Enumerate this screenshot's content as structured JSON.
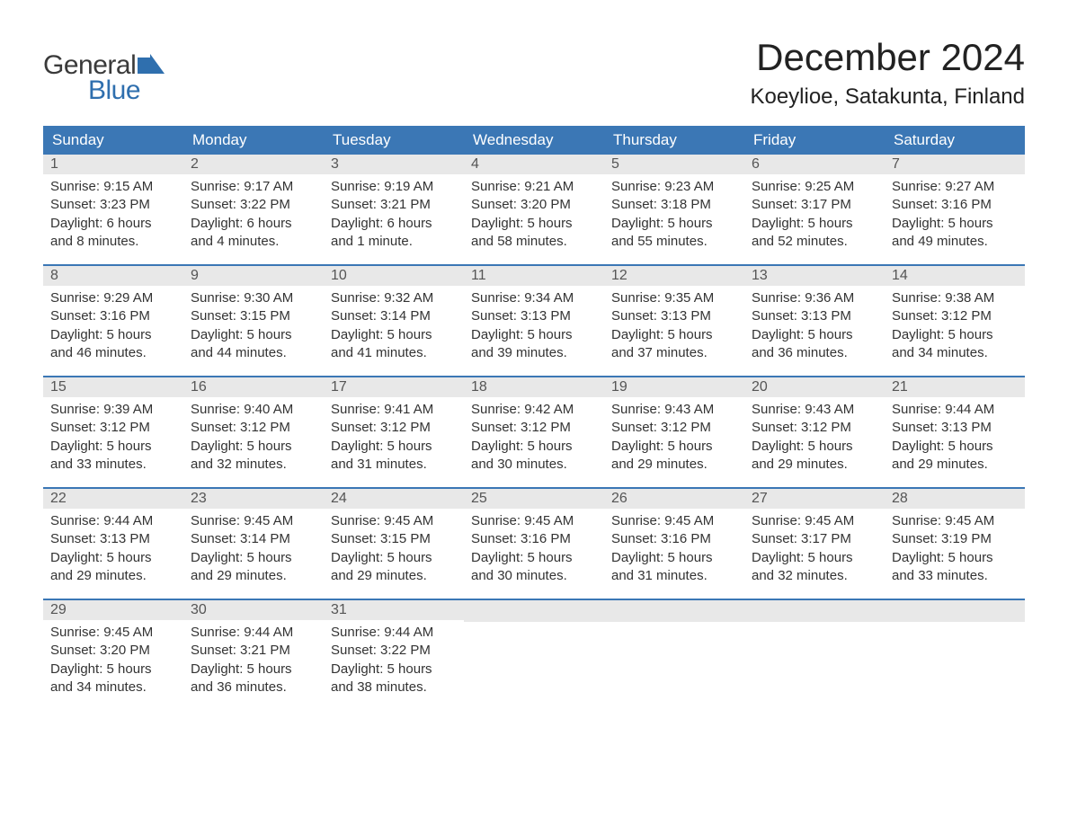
{
  "logo": {
    "word1": "General",
    "word2": "Blue",
    "text_color_1": "#3a3a3a",
    "text_color_2": "#2f6fae",
    "icon_color": "#2f6fae"
  },
  "title": "December 2024",
  "location": "Koeylioe, Satakunta, Finland",
  "colors": {
    "header_bg": "#3b77b5",
    "header_text": "#ffffff",
    "daynum_bg": "#e8e8e8",
    "daynum_text": "#555555",
    "body_text": "#333333",
    "week_border": "#3b77b5",
    "page_bg": "#ffffff"
  },
  "typography": {
    "title_fontsize": 42,
    "location_fontsize": 24,
    "dayheader_fontsize": 17,
    "daynum_fontsize": 16,
    "content_fontsize": 15,
    "logo_fontsize": 30
  },
  "day_labels": [
    "Sunday",
    "Monday",
    "Tuesday",
    "Wednesday",
    "Thursday",
    "Friday",
    "Saturday"
  ],
  "weeks": [
    [
      {
        "num": "1",
        "sunrise": "Sunrise: 9:15 AM",
        "sunset": "Sunset: 3:23 PM",
        "daylight1": "Daylight: 6 hours",
        "daylight2": "and 8 minutes."
      },
      {
        "num": "2",
        "sunrise": "Sunrise: 9:17 AM",
        "sunset": "Sunset: 3:22 PM",
        "daylight1": "Daylight: 6 hours",
        "daylight2": "and 4 minutes."
      },
      {
        "num": "3",
        "sunrise": "Sunrise: 9:19 AM",
        "sunset": "Sunset: 3:21 PM",
        "daylight1": "Daylight: 6 hours",
        "daylight2": "and 1 minute."
      },
      {
        "num": "4",
        "sunrise": "Sunrise: 9:21 AM",
        "sunset": "Sunset: 3:20 PM",
        "daylight1": "Daylight: 5 hours",
        "daylight2": "and 58 minutes."
      },
      {
        "num": "5",
        "sunrise": "Sunrise: 9:23 AM",
        "sunset": "Sunset: 3:18 PM",
        "daylight1": "Daylight: 5 hours",
        "daylight2": "and 55 minutes."
      },
      {
        "num": "6",
        "sunrise": "Sunrise: 9:25 AM",
        "sunset": "Sunset: 3:17 PM",
        "daylight1": "Daylight: 5 hours",
        "daylight2": "and 52 minutes."
      },
      {
        "num": "7",
        "sunrise": "Sunrise: 9:27 AM",
        "sunset": "Sunset: 3:16 PM",
        "daylight1": "Daylight: 5 hours",
        "daylight2": "and 49 minutes."
      }
    ],
    [
      {
        "num": "8",
        "sunrise": "Sunrise: 9:29 AM",
        "sunset": "Sunset: 3:16 PM",
        "daylight1": "Daylight: 5 hours",
        "daylight2": "and 46 minutes."
      },
      {
        "num": "9",
        "sunrise": "Sunrise: 9:30 AM",
        "sunset": "Sunset: 3:15 PM",
        "daylight1": "Daylight: 5 hours",
        "daylight2": "and 44 minutes."
      },
      {
        "num": "10",
        "sunrise": "Sunrise: 9:32 AM",
        "sunset": "Sunset: 3:14 PM",
        "daylight1": "Daylight: 5 hours",
        "daylight2": "and 41 minutes."
      },
      {
        "num": "11",
        "sunrise": "Sunrise: 9:34 AM",
        "sunset": "Sunset: 3:13 PM",
        "daylight1": "Daylight: 5 hours",
        "daylight2": "and 39 minutes."
      },
      {
        "num": "12",
        "sunrise": "Sunrise: 9:35 AM",
        "sunset": "Sunset: 3:13 PM",
        "daylight1": "Daylight: 5 hours",
        "daylight2": "and 37 minutes."
      },
      {
        "num": "13",
        "sunrise": "Sunrise: 9:36 AM",
        "sunset": "Sunset: 3:13 PM",
        "daylight1": "Daylight: 5 hours",
        "daylight2": "and 36 minutes."
      },
      {
        "num": "14",
        "sunrise": "Sunrise: 9:38 AM",
        "sunset": "Sunset: 3:12 PM",
        "daylight1": "Daylight: 5 hours",
        "daylight2": "and 34 minutes."
      }
    ],
    [
      {
        "num": "15",
        "sunrise": "Sunrise: 9:39 AM",
        "sunset": "Sunset: 3:12 PM",
        "daylight1": "Daylight: 5 hours",
        "daylight2": "and 33 minutes."
      },
      {
        "num": "16",
        "sunrise": "Sunrise: 9:40 AM",
        "sunset": "Sunset: 3:12 PM",
        "daylight1": "Daylight: 5 hours",
        "daylight2": "and 32 minutes."
      },
      {
        "num": "17",
        "sunrise": "Sunrise: 9:41 AM",
        "sunset": "Sunset: 3:12 PM",
        "daylight1": "Daylight: 5 hours",
        "daylight2": "and 31 minutes."
      },
      {
        "num": "18",
        "sunrise": "Sunrise: 9:42 AM",
        "sunset": "Sunset: 3:12 PM",
        "daylight1": "Daylight: 5 hours",
        "daylight2": "and 30 minutes."
      },
      {
        "num": "19",
        "sunrise": "Sunrise: 9:43 AM",
        "sunset": "Sunset: 3:12 PM",
        "daylight1": "Daylight: 5 hours",
        "daylight2": "and 29 minutes."
      },
      {
        "num": "20",
        "sunrise": "Sunrise: 9:43 AM",
        "sunset": "Sunset: 3:12 PM",
        "daylight1": "Daylight: 5 hours",
        "daylight2": "and 29 minutes."
      },
      {
        "num": "21",
        "sunrise": "Sunrise: 9:44 AM",
        "sunset": "Sunset: 3:13 PM",
        "daylight1": "Daylight: 5 hours",
        "daylight2": "and 29 minutes."
      }
    ],
    [
      {
        "num": "22",
        "sunrise": "Sunrise: 9:44 AM",
        "sunset": "Sunset: 3:13 PM",
        "daylight1": "Daylight: 5 hours",
        "daylight2": "and 29 minutes."
      },
      {
        "num": "23",
        "sunrise": "Sunrise: 9:45 AM",
        "sunset": "Sunset: 3:14 PM",
        "daylight1": "Daylight: 5 hours",
        "daylight2": "and 29 minutes."
      },
      {
        "num": "24",
        "sunrise": "Sunrise: 9:45 AM",
        "sunset": "Sunset: 3:15 PM",
        "daylight1": "Daylight: 5 hours",
        "daylight2": "and 29 minutes."
      },
      {
        "num": "25",
        "sunrise": "Sunrise: 9:45 AM",
        "sunset": "Sunset: 3:16 PM",
        "daylight1": "Daylight: 5 hours",
        "daylight2": "and 30 minutes."
      },
      {
        "num": "26",
        "sunrise": "Sunrise: 9:45 AM",
        "sunset": "Sunset: 3:16 PM",
        "daylight1": "Daylight: 5 hours",
        "daylight2": "and 31 minutes."
      },
      {
        "num": "27",
        "sunrise": "Sunrise: 9:45 AM",
        "sunset": "Sunset: 3:17 PM",
        "daylight1": "Daylight: 5 hours",
        "daylight2": "and 32 minutes."
      },
      {
        "num": "28",
        "sunrise": "Sunrise: 9:45 AM",
        "sunset": "Sunset: 3:19 PM",
        "daylight1": "Daylight: 5 hours",
        "daylight2": "and 33 minutes."
      }
    ],
    [
      {
        "num": "29",
        "sunrise": "Sunrise: 9:45 AM",
        "sunset": "Sunset: 3:20 PM",
        "daylight1": "Daylight: 5 hours",
        "daylight2": "and 34 minutes."
      },
      {
        "num": "30",
        "sunrise": "Sunrise: 9:44 AM",
        "sunset": "Sunset: 3:21 PM",
        "daylight1": "Daylight: 5 hours",
        "daylight2": "and 36 minutes."
      },
      {
        "num": "31",
        "sunrise": "Sunrise: 9:44 AM",
        "sunset": "Sunset: 3:22 PM",
        "daylight1": "Daylight: 5 hours",
        "daylight2": "and 38 minutes."
      },
      {
        "empty": true
      },
      {
        "empty": true
      },
      {
        "empty": true
      },
      {
        "empty": true
      }
    ]
  ]
}
